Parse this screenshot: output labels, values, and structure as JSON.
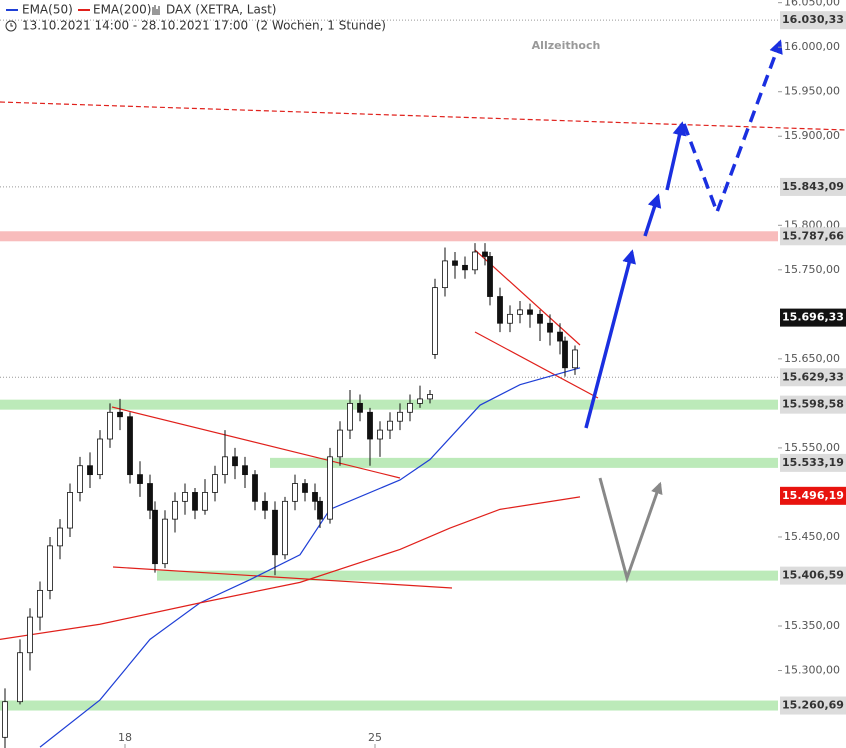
{
  "chart_data": {
    "type": "candlestick",
    "title": "DAX (XETRA, Last)",
    "subtitle": "13.10.2021 14:00 - 28.10.2021 17:00  (2 Wochen, 1 Stunde)",
    "annotation": "Allzeithoch",
    "xlim": [
      0,
      155.6
    ],
    "ylim": [
      15213,
      16053
    ],
    "xticks": [
      {
        "value": 25,
        "label": "18"
      },
      {
        "value": 75,
        "label": "25"
      }
    ],
    "yticks": [
      {
        "value": 16050,
        "label": "16.050,00"
      },
      {
        "value": 16000,
        "label": "16.000,00"
      },
      {
        "value": 15950,
        "label": "15.950,00"
      },
      {
        "value": 15900,
        "label": "15.900,00"
      },
      {
        "value": 15800,
        "label": "15.800,00"
      },
      {
        "value": 15750,
        "label": "15.750,00"
      },
      {
        "value": 15650,
        "label": "15.650,00"
      },
      {
        "value": 15550,
        "label": "15.550,00"
      },
      {
        "value": 15450,
        "label": "15.450,00"
      },
      {
        "value": 15350,
        "label": "15.350,00"
      },
      {
        "value": 15300,
        "label": "15.300,00"
      }
    ],
    "candles": {
      "x": [
        1,
        4,
        6,
        8,
        10,
        12,
        14,
        16,
        18,
        20,
        22,
        24,
        26,
        28,
        30,
        31,
        33,
        35,
        37,
        39,
        41,
        43,
        45,
        47,
        49,
        51,
        53,
        55,
        57,
        59,
        61,
        63,
        64,
        66,
        68,
        70,
        72,
        74,
        76,
        78,
        80,
        82,
        84,
        86,
        87,
        89,
        91,
        93,
        95,
        97,
        98,
        100,
        102,
        104,
        106,
        108,
        110,
        112,
        113,
        115
      ],
      "open": [
        15225,
        15265,
        15320,
        15360,
        15390,
        15440,
        15460,
        15500,
        15530,
        15520,
        15560,
        15590,
        15585,
        15520,
        15510,
        15480,
        15420,
        15470,
        15490,
        15500,
        15480,
        15500,
        15520,
        15540,
        15530,
        15520,
        15490,
        15480,
        15430,
        15490,
        15510,
        15500,
        15490,
        15470,
        15540,
        15570,
        15600,
        15590,
        15560,
        15570,
        15580,
        15590,
        15600,
        15605,
        15655,
        15730,
        15760,
        15755,
        15750,
        15770,
        15765,
        15720,
        15690,
        15700,
        15705,
        15700,
        15690,
        15680,
        15670,
        15640
      ],
      "high": [
        15280,
        15335,
        15370,
        15400,
        15450,
        15470,
        15510,
        15540,
        15545,
        15570,
        15600,
        15605,
        15590,
        15535,
        15520,
        15490,
        15480,
        15500,
        15510,
        15505,
        15515,
        15530,
        15570,
        15550,
        15540,
        15525,
        15500,
        15490,
        15495,
        15520,
        15515,
        15510,
        15495,
        15550,
        15580,
        15615,
        15610,
        15595,
        15580,
        15590,
        15600,
        15610,
        15620,
        15615,
        15740,
        15775,
        15770,
        15765,
        15780,
        15780,
        15770,
        15730,
        15710,
        15715,
        15712,
        15705,
        15700,
        15690,
        15675,
        15665
      ],
      "low": [
        15213,
        15262,
        15300,
        15345,
        15380,
        15425,
        15450,
        15490,
        15505,
        15515,
        15550,
        15570,
        15510,
        15495,
        15470,
        15410,
        15415,
        15455,
        15475,
        15470,
        15475,
        15490,
        15510,
        15515,
        15505,
        15480,
        15470,
        15407,
        15425,
        15480,
        15490,
        15480,
        15460,
        15465,
        15530,
        15560,
        15580,
        15530,
        15540,
        15560,
        15570,
        15580,
        15595,
        15600,
        15650,
        15720,
        15740,
        15740,
        15745,
        15755,
        15710,
        15680,
        15680,
        15690,
        15685,
        15670,
        15665,
        15655,
        15630,
        15632
      ],
      "close": [
        15265,
        15320,
        15360,
        15390,
        15440,
        15460,
        15500,
        15530,
        15520,
        15560,
        15590,
        15585,
        15520,
        15510,
        15480,
        15420,
        15470,
        15490,
        15500,
        15480,
        15500,
        15520,
        15540,
        15530,
        15520,
        15490,
        15480,
        15430,
        15490,
        15510,
        15500,
        15490,
        15470,
        15540,
        15570,
        15600,
        15590,
        15560,
        15570,
        15580,
        15590,
        15600,
        15605,
        15610,
        15730,
        15760,
        15755,
        15750,
        15770,
        15765,
        15720,
        15690,
        15700,
        15705,
        15700,
        15690,
        15680,
        15670,
        15640,
        15660
      ]
    },
    "series": [
      {
        "name": "EMA(50)",
        "color": "#1f3fd6",
        "x": [
          8,
          20,
          30,
          40,
          50,
          60,
          66,
          80,
          86,
          96,
          104,
          116
        ],
        "values": [
          15214,
          15267,
          15335,
          15376,
          15402,
          15430,
          15481,
          15514,
          15537,
          15598,
          15621,
          15640
        ]
      },
      {
        "name": "EMA(200)",
        "color": "#e0201b",
        "x": [
          0,
          20,
          40,
          60,
          80,
          90,
          100,
          116
        ],
        "values": [
          15335,
          15352,
          15376,
          15399,
          15436,
          15460,
          15481,
          15495
        ]
      }
    ],
    "levels": [
      {
        "value": 16030.33,
        "label": "16.030,33",
        "style": "dotted"
      },
      {
        "value": 15843.09,
        "label": "15.843,09",
        "style": "dotted"
      },
      {
        "value": 15787.66,
        "label": "15.787,66",
        "style": "red-band"
      },
      {
        "value": 15696.33,
        "label": "15.696,33",
        "style": "last"
      },
      {
        "value": 15629.33,
        "label": "15.629,33",
        "style": "dotted"
      },
      {
        "value": 15598.58,
        "label": "15.598,58",
        "style": "green-band"
      },
      {
        "value": 15533.19,
        "label": "15.533,19",
        "style": "green-band"
      },
      {
        "value": 15496.19,
        "label": "15.496,19",
        "style": "ema"
      },
      {
        "value": 15406.59,
        "label": "15.406,59",
        "style": "green-band"
      },
      {
        "value": 15260.69,
        "label": "15.260,69",
        "style": "green-band"
      }
    ]
  }
}
